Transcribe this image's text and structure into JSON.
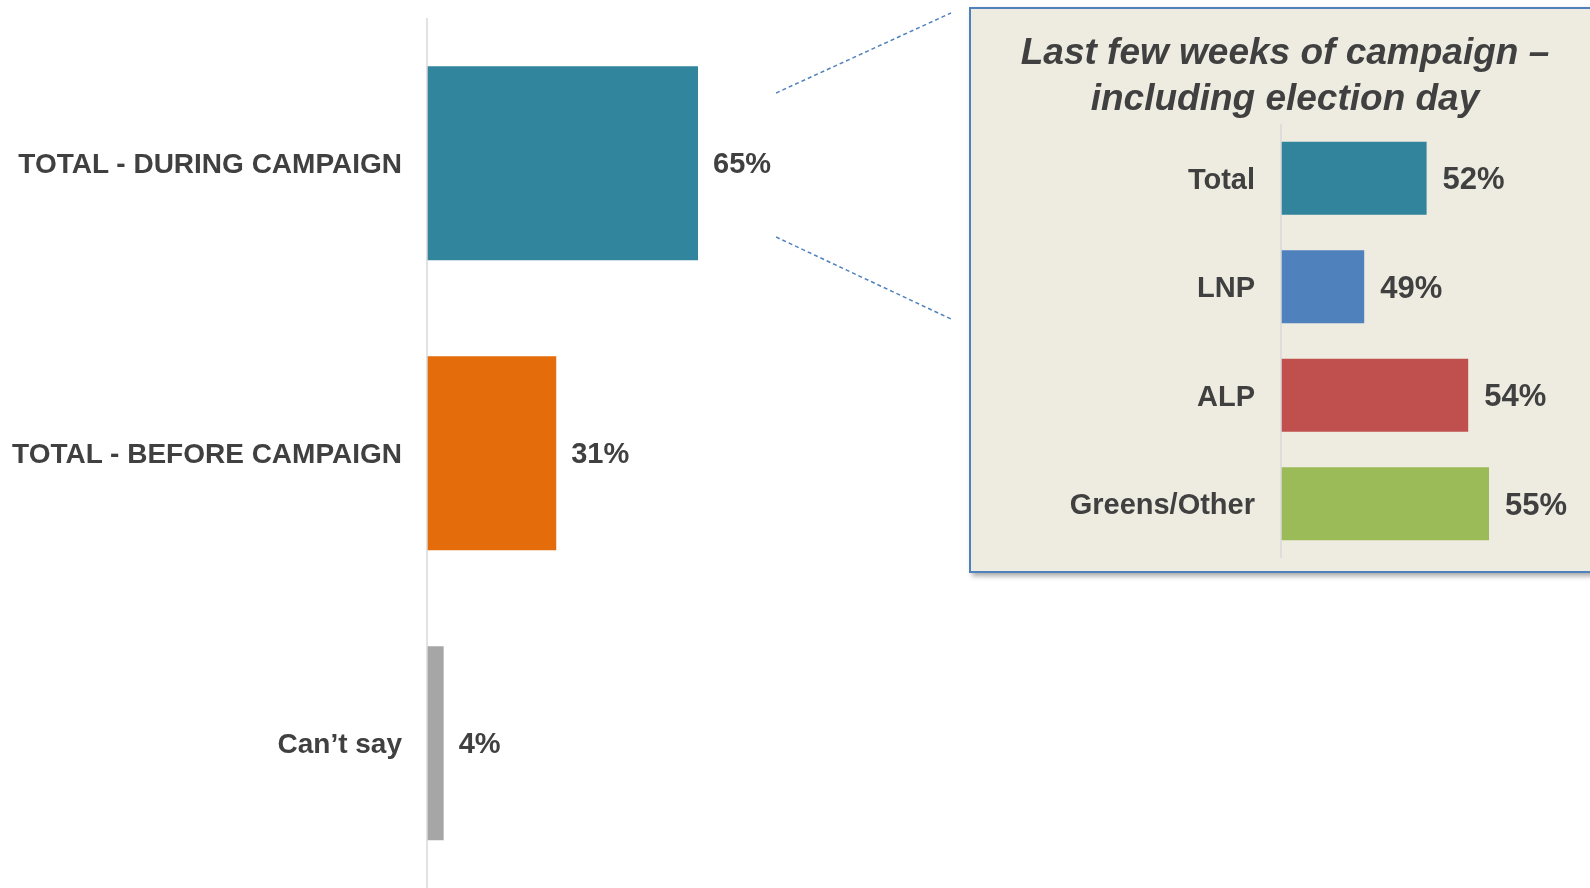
{
  "chart_data": [
    {
      "type": "bar",
      "orientation": "horizontal",
      "categories": [
        "TOTAL - DURING CAMPAIGN",
        "TOTAL - BEFORE CAMPAIGN",
        "Can’t say"
      ],
      "values": [
        65,
        31,
        4
      ],
      "colors": [
        "#31859c",
        "#e46c0a",
        "#a6a6a6"
      ],
      "value_labels": [
        "65%",
        "31%",
        "4%"
      ],
      "tick_labels": "y"
    },
    {
      "type": "bar",
      "orientation": "horizontal",
      "title": "Last few weeks of campaign – including election day",
      "categories": [
        "Total",
        "LNP",
        "ALP",
        "Greens/Other"
      ],
      "values": [
        52,
        49,
        54,
        55
      ],
      "colors": [
        "#31849b",
        "#4f81bd",
        "#c0504d",
        "#9bbb59"
      ],
      "value_labels": [
        "52%",
        "49%",
        "54%",
        "55%"
      ],
      "xlim": [
        45,
        55
      ],
      "tick_labels": "y"
    }
  ]
}
